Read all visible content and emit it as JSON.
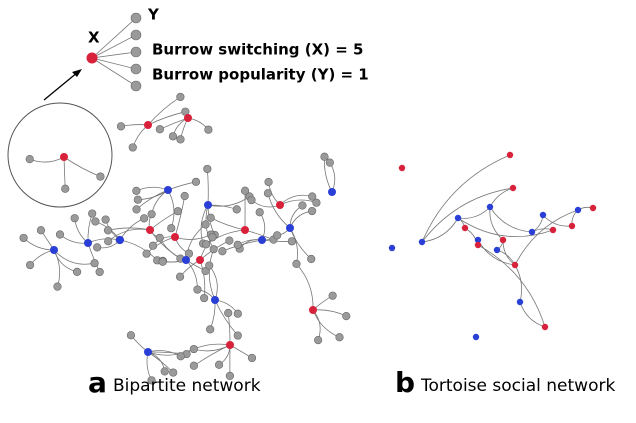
{
  "inset": {
    "x_label": "X",
    "y_label": "Y",
    "switching": "Burrow switching  (X) = 5",
    "popularity": "Burrow popularity (Y) = 1"
  },
  "panels": [
    {
      "letter": "a",
      "caption": "Bipartite network"
    },
    {
      "letter": "b",
      "caption": "Tortoise social network"
    }
  ]
}
